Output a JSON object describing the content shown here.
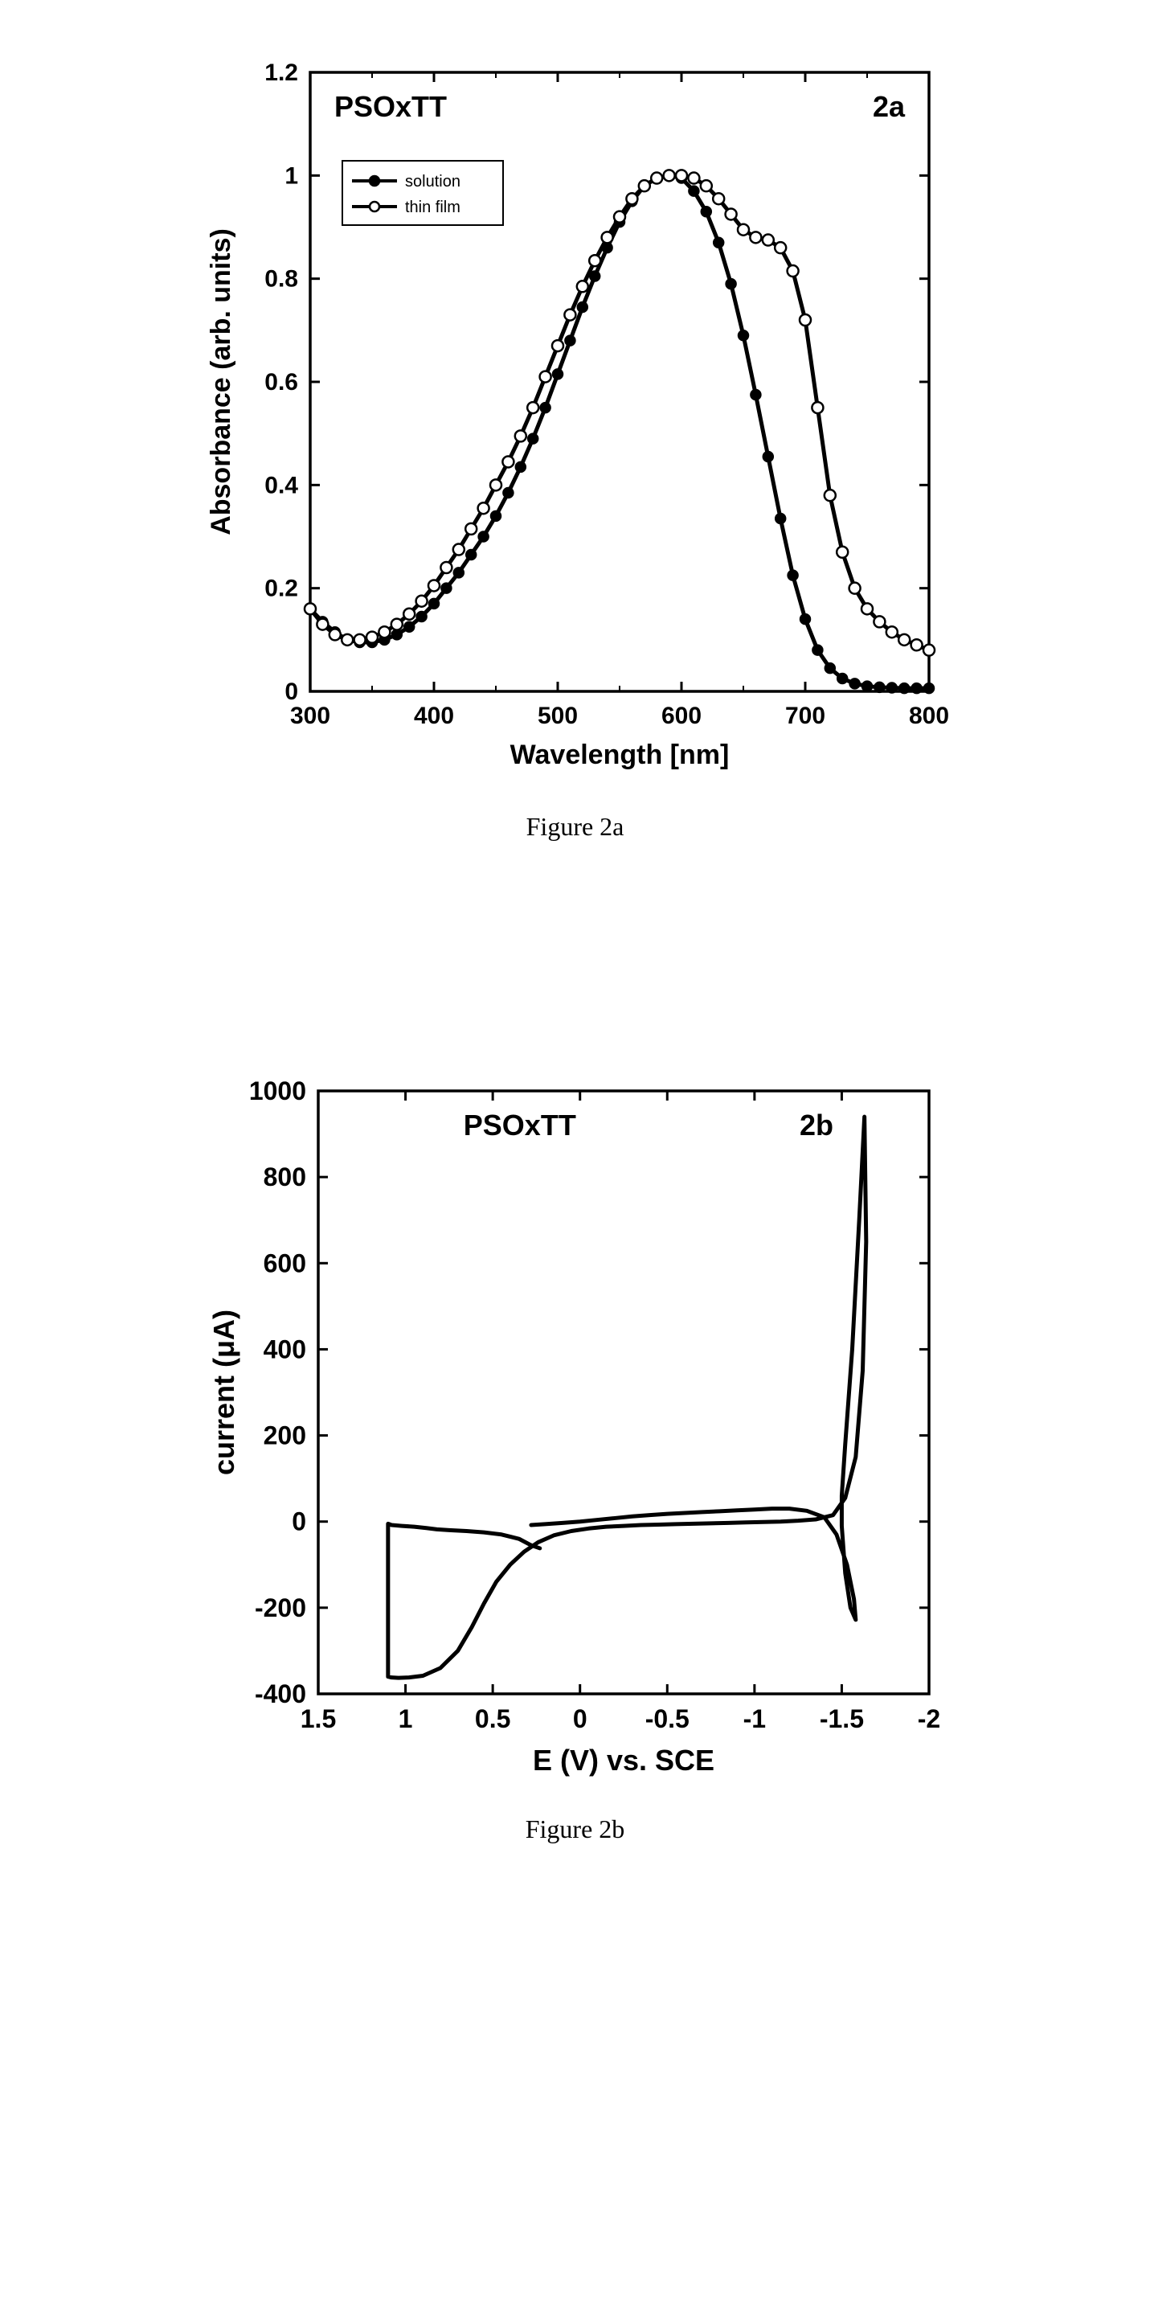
{
  "fig_a": {
    "caption": "Figure 2a",
    "title_left": "PSOxTT",
    "title_right": "2a",
    "xlabel": "Wavelength [nm]",
    "ylabel": "Absorbance (arb. units)",
    "xlim": [
      300,
      800
    ],
    "ylim": [
      0,
      1.2
    ],
    "xticks": [
      300,
      400,
      500,
      600,
      700,
      800
    ],
    "yticks": [
      0,
      0.2,
      0.4,
      0.6,
      0.8,
      1,
      1.2
    ],
    "ytick_labels": [
      "0",
      "0.2",
      "0.4",
      "0.6",
      "0.8",
      "1",
      "1.2"
    ],
    "background_color": "#ffffff",
    "axis_color": "#000000",
    "axis_linewidth": 3.5,
    "tick_length": 12,
    "tick_width": 3,
    "tick_fontsize": 30,
    "label_fontsize": 34,
    "title_fontsize": 36,
    "legend": {
      "entries": [
        "solution",
        "thin film"
      ],
      "markers": [
        "filled-circle",
        "open-circle"
      ],
      "fontsize": 20,
      "box_linewidth": 2,
      "box_color": "#000000"
    },
    "series": [
      {
        "name": "solution",
        "marker": "filled-circle",
        "marker_fill": "#000000",
        "marker_stroke": "#000000",
        "marker_size": 6,
        "line_color": "#000000",
        "line_width": 5,
        "x": [
          300,
          310,
          320,
          330,
          340,
          350,
          360,
          370,
          380,
          390,
          400,
          410,
          420,
          430,
          440,
          450,
          460,
          470,
          480,
          490,
          500,
          510,
          520,
          530,
          540,
          550,
          560,
          570,
          580,
          590,
          600,
          610,
          620,
          630,
          640,
          650,
          660,
          670,
          680,
          690,
          700,
          710,
          720,
          730,
          740,
          750,
          760,
          770,
          780,
          790,
          800
        ],
        "y": [
          0.16,
          0.135,
          0.115,
          0.1,
          0.095,
          0.095,
          0.1,
          0.11,
          0.125,
          0.145,
          0.17,
          0.2,
          0.23,
          0.265,
          0.3,
          0.34,
          0.385,
          0.435,
          0.49,
          0.55,
          0.615,
          0.68,
          0.745,
          0.805,
          0.86,
          0.91,
          0.95,
          0.98,
          0.995,
          1.0,
          0.995,
          0.97,
          0.93,
          0.87,
          0.79,
          0.69,
          0.575,
          0.455,
          0.335,
          0.225,
          0.14,
          0.08,
          0.045,
          0.025,
          0.015,
          0.01,
          0.008,
          0.007,
          0.006,
          0.006,
          0.006
        ]
      },
      {
        "name": "thin film",
        "marker": "open-circle",
        "marker_fill": "#ffffff",
        "marker_stroke": "#000000",
        "marker_size": 7,
        "line_color": "#000000",
        "line_width": 5,
        "x": [
          300,
          310,
          320,
          330,
          340,
          350,
          360,
          370,
          380,
          390,
          400,
          410,
          420,
          430,
          440,
          450,
          460,
          470,
          480,
          490,
          500,
          510,
          520,
          530,
          540,
          550,
          560,
          570,
          580,
          590,
          600,
          610,
          620,
          630,
          640,
          650,
          660,
          670,
          680,
          690,
          700,
          710,
          720,
          730,
          740,
          750,
          760,
          770,
          780,
          790,
          800
        ],
        "y": [
          0.16,
          0.13,
          0.11,
          0.1,
          0.1,
          0.105,
          0.115,
          0.13,
          0.15,
          0.175,
          0.205,
          0.24,
          0.275,
          0.315,
          0.355,
          0.4,
          0.445,
          0.495,
          0.55,
          0.61,
          0.67,
          0.73,
          0.785,
          0.835,
          0.88,
          0.92,
          0.955,
          0.98,
          0.995,
          1.0,
          1.0,
          0.995,
          0.98,
          0.955,
          0.925,
          0.895,
          0.88,
          0.875,
          0.86,
          0.815,
          0.72,
          0.55,
          0.38,
          0.27,
          0.2,
          0.16,
          0.135,
          0.115,
          0.1,
          0.09,
          0.08
        ]
      }
    ]
  },
  "fig_b": {
    "caption": "Figure 2b",
    "title_left": "PSOxTT",
    "title_right": "2b",
    "xlabel": "E (V) vs. SCE",
    "ylabel": "current (μA)",
    "xlim_display_left": 1.5,
    "xlim_display_right": -2.0,
    "ylim": [
      -400,
      1000
    ],
    "xticks": [
      1.5,
      1.0,
      0.5,
      0,
      -0.5,
      -1.0,
      -1.5,
      -2.0
    ],
    "xtick_labels": [
      "1.5",
      "1",
      "0.5",
      "0",
      "-0.5",
      "-1",
      "-1.5",
      "-2"
    ],
    "yticks": [
      -400,
      -200,
      0,
      200,
      400,
      600,
      800,
      1000
    ],
    "background_color": "#ffffff",
    "axis_color": "#000000",
    "axis_linewidth": 3.5,
    "tick_length": 12,
    "tick_width": 3,
    "tick_fontsize": 32,
    "label_fontsize": 36,
    "title_fontsize": 36,
    "line_color": "#000000",
    "line_width": 5,
    "cv_path": {
      "E": [
        0.28,
        0.35,
        0.45,
        0.55,
        0.65,
        0.75,
        0.82,
        0.88,
        0.95,
        1.02,
        1.08,
        1.1,
        1.1,
        1.08,
        1.04,
        0.98,
        0.9,
        0.8,
        0.7,
        0.62,
        0.55,
        0.48,
        0.4,
        0.32,
        0.24,
        0.15,
        0.05,
        -0.05,
        -0.15,
        -0.25,
        -0.35,
        -0.45,
        -0.55,
        -0.65,
        -0.75,
        -0.85,
        -0.95,
        -1.05,
        -1.15,
        -1.25,
        -1.35,
        -1.45,
        -1.52,
        -1.58,
        -1.62,
        -1.64,
        -1.63,
        -1.6,
        -1.56,
        -1.52,
        -1.5,
        -1.5,
        -1.52,
        -1.55,
        -1.58,
        -1.57,
        -1.53,
        -1.47,
        -1.4,
        -1.3,
        -1.2,
        -1.1,
        -1.0,
        -0.9,
        -0.8,
        -0.7,
        -0.6,
        -0.5,
        -0.4,
        -0.3,
        -0.2,
        -0.1,
        0.0,
        0.1,
        0.2,
        0.28
      ],
      "I": [
        -55,
        -40,
        -30,
        -25,
        -22,
        -20,
        -18,
        -15,
        -12,
        -10,
        -8,
        -5,
        -360,
        -362,
        -363,
        -362,
        -358,
        -340,
        -300,
        -245,
        -190,
        -140,
        -100,
        -70,
        -48,
        -32,
        -22,
        -16,
        -12,
        -10,
        -8,
        -7,
        -6,
        -5,
        -4,
        -3,
        -2,
        -1,
        0,
        2,
        5,
        15,
        55,
        150,
        350,
        650,
        940,
        700,
        400,
        180,
        60,
        -10,
        -120,
        -200,
        -228,
        -180,
        -100,
        -30,
        10,
        25,
        30,
        30,
        28,
        26,
        24,
        22,
        20,
        18,
        15,
        12,
        8,
        4,
        0,
        -3,
        -6,
        -8
      ]
    }
  }
}
